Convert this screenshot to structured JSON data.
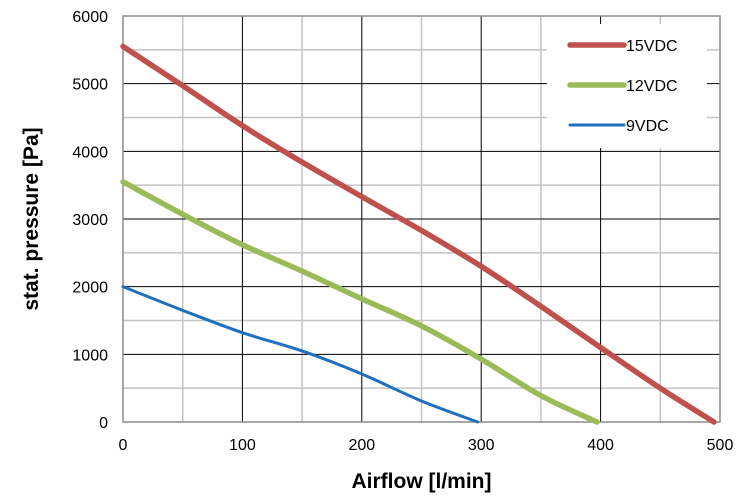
{
  "chart_data": {
    "type": "line",
    "xlabel": "Airflow [l/min]",
    "ylabel": "stat. pressure [Pa]",
    "xlim": [
      0,
      500
    ],
    "ylim": [
      0,
      6000
    ],
    "xticks": [
      0,
      100,
      200,
      300,
      400,
      500
    ],
    "yticks": [
      0,
      1000,
      2000,
      3000,
      4000,
      5000,
      6000
    ],
    "x_minor_step": 50,
    "y_minor_step": 500,
    "grid": true,
    "legend_position": "top-right",
    "series": [
      {
        "name": "15VDC",
        "color": "#c0504d",
        "points": [
          [
            0,
            5550
          ],
          [
            50,
            4970
          ],
          [
            100,
            4380
          ],
          [
            150,
            3840
          ],
          [
            200,
            3330
          ],
          [
            250,
            2830
          ],
          [
            300,
            2300
          ],
          [
            350,
            1710
          ],
          [
            400,
            1100
          ],
          [
            450,
            500
          ],
          [
            495,
            0
          ]
        ]
      },
      {
        "name": "12VDC",
        "color": "#9bbb59",
        "points": [
          [
            0,
            3550
          ],
          [
            50,
            3070
          ],
          [
            100,
            2620
          ],
          [
            150,
            2230
          ],
          [
            200,
            1820
          ],
          [
            250,
            1420
          ],
          [
            300,
            930
          ],
          [
            350,
            390
          ],
          [
            397,
            0
          ]
        ]
      },
      {
        "name": "9VDC",
        "color": "#1f6fbf",
        "points": [
          [
            0,
            2000
          ],
          [
            50,
            1650
          ],
          [
            100,
            1320
          ],
          [
            150,
            1050
          ],
          [
            200,
            710
          ],
          [
            250,
            310
          ],
          [
            297,
            0
          ]
        ]
      }
    ]
  }
}
